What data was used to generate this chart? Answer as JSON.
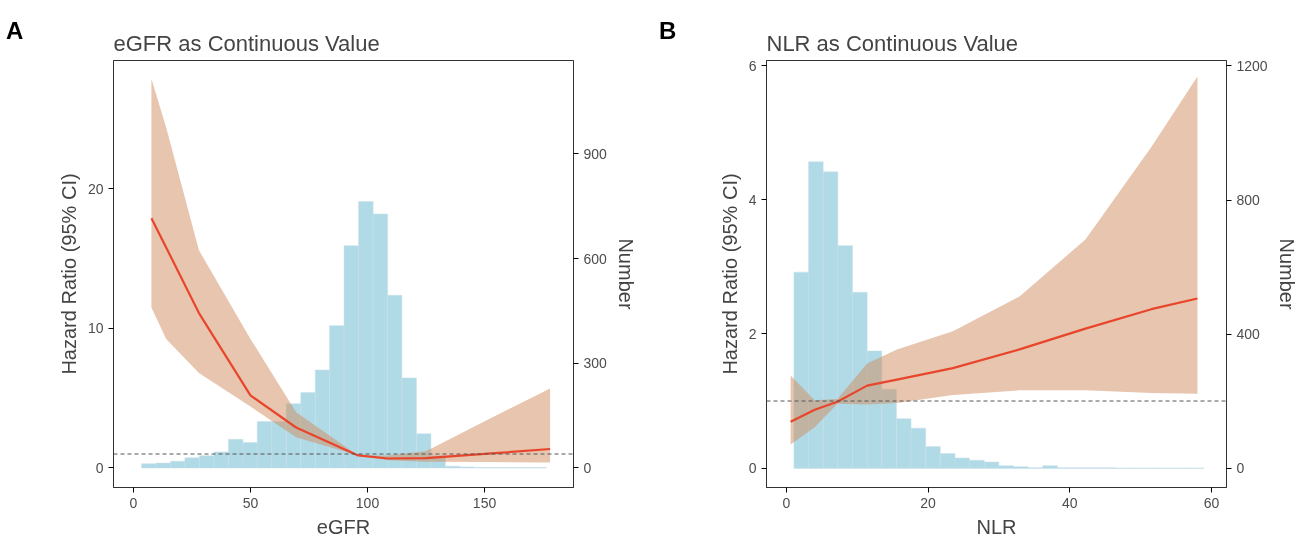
{
  "chart_data": [
    {
      "type": "line",
      "title": "eGFR as Continuous Value",
      "annotations": [
        "A"
      ],
      "xlabel": "eGFR",
      "ylabel": "Hazard Ratio (95% CI)",
      "y2label": "Number",
      "xlim": [
        -8.5,
        188
      ],
      "xticks": [
        0,
        50,
        100,
        150
      ],
      "ylim": [
        -1.4,
        29.2
      ],
      "yticks": [
        0,
        10,
        20
      ],
      "y2lim": [
        -56,
        1168
      ],
      "y2ticks": [
        0,
        300,
        600,
        900
      ],
      "grid": false,
      "ref_lines": [
        {
          "axis": "y",
          "value": 1,
          "line_style": "dashed",
          "color": "#555555"
        }
      ],
      "series": [
        {
          "type": "histogram",
          "axis": "y2",
          "color": "#add8e6",
          "bins": [
            3.5,
            9.7,
            15.9,
            22.0,
            28.2,
            34.4,
            40.6,
            46.8,
            52.9,
            59.1,
            65.3,
            71.5,
            77.7,
            83.8,
            90.0,
            96.2,
            102.4,
            108.6,
            114.7,
            120.9,
            127.1,
            133.3,
            139.5,
            145.6,
            151.8,
            158.0,
            164.2,
            170.4,
            176.5
          ],
          "values": [
            12,
            14,
            19,
            29,
            35,
            46,
            82,
            73,
            133,
            133,
            184,
            216,
            281,
            408,
            637,
            764,
            728,
            495,
            258,
            98,
            35,
            5,
            3,
            1,
            1,
            1,
            1,
            1
          ]
        },
        {
          "type": "line",
          "color": "#e8452c",
          "x": [
            7.7,
            14,
            28,
            50,
            69.5,
            96,
            108.7,
            125,
            153,
            178
          ],
          "values": [
            17.9,
            15.8,
            11.1,
            5.2,
            2.9,
            0.9,
            0.68,
            0.7,
            1.04,
            1.36
          ],
          "lower": [
            11.5,
            9.25,
            6.8,
            4.4,
            2.2,
            0.9,
            0.56,
            0.45,
            0.42,
            0.4
          ],
          "upper": [
            27.9,
            24.4,
            15.6,
            9.25,
            4.0,
            0.9,
            0.9,
            1.2,
            3.6,
            5.7
          ]
        }
      ]
    },
    {
      "type": "line",
      "title": "NLR as Continuous Value",
      "annotations": [
        "B"
      ],
      "xlabel": "NLR",
      "ylabel": "Hazard Ratio (95% CI)",
      "y2label": "Number",
      "xlim": [
        -2.8,
        62.1
      ],
      "xticks": [
        0,
        20,
        40,
        60
      ],
      "ylim": [
        -0.29,
        6.08
      ],
      "yticks": [
        0,
        2,
        4,
        6
      ],
      "y2lim": [
        -57,
        1216
      ],
      "y2ticks": [
        0,
        400,
        800,
        1200
      ],
      "grid": false,
      "ref_lines": [
        {
          "axis": "y",
          "value": 1,
          "line_style": "dashed",
          "color": "#555555"
        }
      ],
      "series": [
        {
          "type": "histogram",
          "axis": "y2",
          "color": "#add8e6",
          "bins": [
            1.07,
            3.14,
            5.2,
            7.27,
            9.33,
            11.4,
            13.46,
            15.53,
            17.59,
            19.66,
            21.72,
            23.79,
            25.85,
            27.92,
            29.98,
            32.05,
            34.11,
            36.18,
            38.24,
            40.31,
            42.37,
            44.44,
            46.5,
            48.57,
            50.63,
            52.7,
            54.76,
            56.83,
            58.89
          ],
          "values": [
            585,
            914,
            884,
            664,
            525,
            350,
            236,
            148,
            120,
            65,
            44,
            31,
            24,
            19,
            8,
            5,
            2,
            8,
            2,
            2,
            2,
            2,
            1,
            1,
            1,
            1,
            1,
            1
          ]
        },
        {
          "type": "line",
          "color": "#e8452c",
          "x": [
            0.6,
            4,
            7.2,
            11.4,
            15.6,
            23.5,
            32.9,
            42.2,
            51.5,
            58
          ],
          "values": [
            0.69,
            0.87,
            0.99,
            1.23,
            1.32,
            1.49,
            1.77,
            2.08,
            2.37,
            2.53
          ],
          "lower": [
            0.35,
            0.61,
            0.96,
            0.95,
            0.97,
            1.09,
            1.16,
            1.16,
            1.12,
            1.11
          ],
          "upper": [
            1.38,
            1.01,
            1.03,
            1.56,
            1.77,
            2.04,
            2.56,
            3.41,
            4.79,
            5.84
          ]
        }
      ]
    }
  ]
}
